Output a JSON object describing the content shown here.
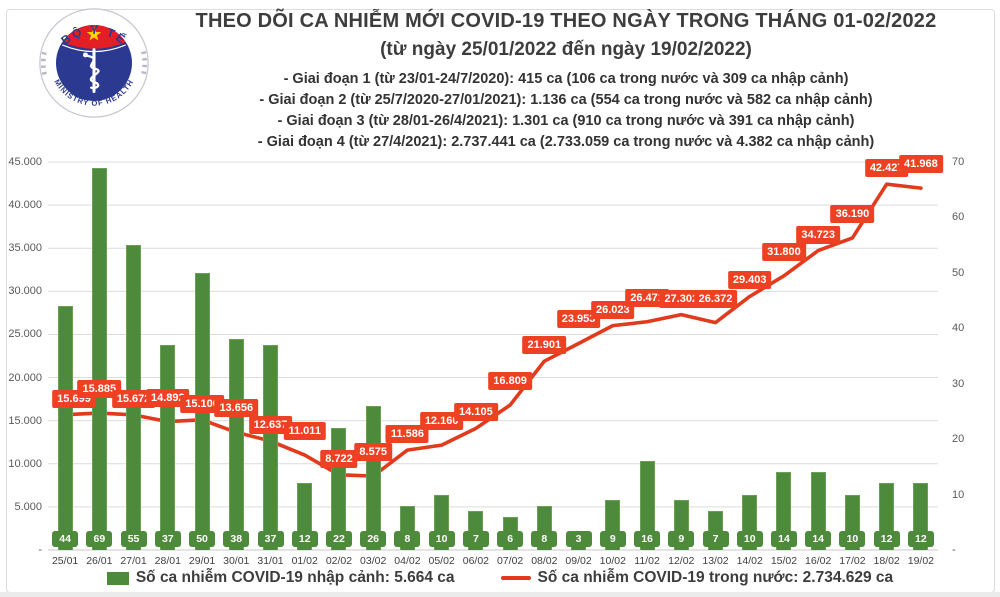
{
  "header": {
    "title": "THEO DÕI CA NHIỄM MỚI COVID-19 THEO NGÀY TRONG THÁNG 01-02/2022",
    "subtitle": "(từ ngày 25/01/2022 đến ngày 19/02/2022)",
    "phases": [
      "- Giai đoạn 1 (từ 23/01-24/7/2020): 415 ca (106 ca trong nước và 309 ca nhập cảnh)",
      "- Giai đoạn 2 (từ 25/7/2020-27/01/2021): 1.136 ca (554 ca trong nước và 582 ca nhập cảnh)",
      "- Giai đoạn 3 (từ 28/01-26/4/2021): 1.301 ca (910 ca trong nước và 391 ca nhập cảnh)",
      "- Giai đoạn 4 (từ 27/4/2021): 2.737.441 ca (2.733.059 ca trong nước và 4.382 ca nhập cảnh)"
    ],
    "logo": {
      "top_text": "BỘ Y TẾ",
      "bottom_text": "MINISTRY OF HEALTH"
    }
  },
  "chart_data": {
    "type": "bar+line",
    "categories": [
      "25/01",
      "26/01",
      "27/01",
      "28/01",
      "29/01",
      "30/01",
      "31/01",
      "01/02",
      "02/02",
      "03/02",
      "04/02",
      "05/02",
      "06/02",
      "07/02",
      "08/02",
      "09/02",
      "10/02",
      "11/02",
      "12/02",
      "13/02",
      "14/02",
      "15/02",
      "16/02",
      "17/02",
      "18/02",
      "19/02"
    ],
    "series": [
      {
        "name": "Số ca nhiễm COVID-19 nhập cảnh",
        "type": "bar",
        "axis": "right",
        "color": "#4e8a3b",
        "values": [
          44,
          69,
          55,
          37,
          50,
          38,
          37,
          12,
          22,
          26,
          8,
          10,
          7,
          6,
          8,
          3,
          9,
          16,
          9,
          7,
          10,
          14,
          14,
          10,
          12,
          12
        ]
      },
      {
        "name": "Số ca nhiễm COVID-19 trong nước",
        "type": "line",
        "axis": "left",
        "color": "#e13a1c",
        "values": [
          15699,
          15885,
          15672,
          14892,
          15100,
          13656,
          12637,
          11011,
          8722,
          8575,
          11586,
          12160,
          14105,
          16809,
          21901,
          23953,
          26023,
          26471,
          27302,
          26372,
          29403,
          31800,
          34723,
          36190,
          42427,
          41968
        ],
        "labels": [
          "15.699",
          "15.885",
          "15.672",
          "14.892",
          "15.100",
          "13.656",
          "12.637",
          "11.011",
          "8.722",
          "8.575",
          "11.586",
          "12.160",
          "14.105",
          "16.809",
          "21.901",
          "23.953",
          "26.023",
          "26.471",
          "27.302",
          "26.372",
          "29.403",
          "31.800",
          "34.723",
          "36.190",
          "42.427",
          "41.968"
        ]
      }
    ],
    "left_axis": {
      "max": 45000,
      "step": 5000,
      "ticks": [
        "45.000",
        "40.000",
        "35.000",
        "30.000",
        "25.000",
        "20.000",
        "15.000",
        "10.000",
        "5.000",
        "-"
      ]
    },
    "right_axis": {
      "max": 70,
      "step": 10,
      "ticks": [
        "70",
        "60",
        "50",
        "40",
        "30",
        "20",
        "10",
        "-"
      ]
    },
    "grid": true,
    "legend_position": "bottom",
    "legend": [
      {
        "swatch": "bar",
        "color": "#4e8a3b",
        "label": "Số ca nhiễm COVID-19 nhập cảnh: 5.664 ca"
      },
      {
        "swatch": "line",
        "color": "#e13a1c",
        "label": "Số ca nhiễm COVID-19 trong nước: 2.734.629 ca"
      }
    ]
  }
}
